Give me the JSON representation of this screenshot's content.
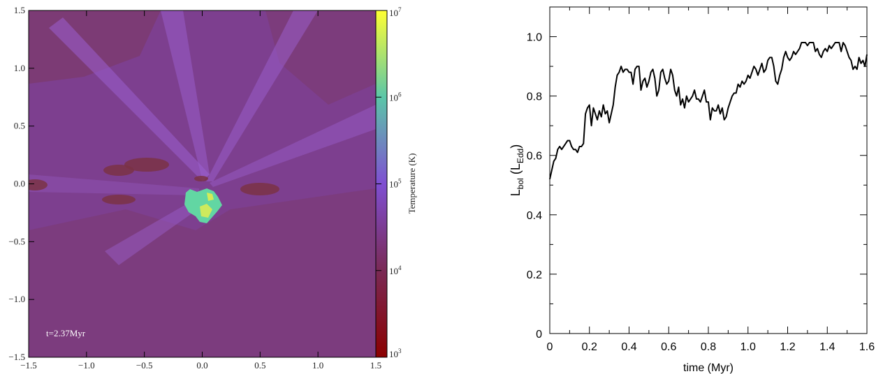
{
  "chart_data": [
    {
      "type": "heatmap",
      "annotation": "t=2.37Myr",
      "x_ticks": [
        "−1.5",
        "−1.0",
        "−0.5",
        "0.0",
        "0.5",
        "1.0",
        "1.5"
      ],
      "y_ticks": [
        "−1.5",
        "−1.0",
        "−0.5",
        "0.0",
        "0.5",
        "1.0",
        "1.5"
      ],
      "xlim": [
        -1.5,
        1.5
      ],
      "ylim": [
        -1.5,
        1.5
      ],
      "colorbar": {
        "label": "Temperature  (K)",
        "scale": "log",
        "range": [
          1000,
          10000000
        ],
        "tick_bases": [
          "10",
          "10",
          "10",
          "10",
          "10"
        ],
        "tick_exponents": [
          "3",
          "4",
          "5",
          "6",
          "7"
        ],
        "colors": [
          "#8b0000",
          "#7a2a55",
          "#7f4fd2",
          "#5bc6a8",
          "#ffff33"
        ]
      },
      "colors": {
        "background": "#7d3f8f",
        "dark_lobe": "#7a3345",
        "light_streak": "#9b5fcf",
        "hot_core": "#62d6a3"
      }
    },
    {
      "type": "line",
      "xlabel": "time (Myr)",
      "ylabel": {
        "main": "L",
        "sub1": "bol",
        "mid": " (L",
        "sub2": "Edd",
        "end": ")"
      },
      "xlim": [
        0,
        1.6
      ],
      "ylim": [
        0,
        1.1
      ],
      "x_ticks": [
        "0",
        "0.2",
        "0.4",
        "0.6",
        "0.8",
        "1.0",
        "1.2",
        "1.4",
        "1.6"
      ],
      "y_ticks": [
        "0",
        "0.2",
        "0.4",
        "0.6",
        "0.8",
        "1.0"
      ],
      "x": [
        0.0,
        0.01,
        0.02,
        0.03,
        0.04,
        0.05,
        0.06,
        0.07,
        0.08,
        0.09,
        0.1,
        0.11,
        0.12,
        0.13,
        0.14,
        0.15,
        0.16,
        0.17,
        0.18,
        0.19,
        0.2,
        0.21,
        0.22,
        0.23,
        0.24,
        0.25,
        0.26,
        0.27,
        0.28,
        0.29,
        0.3,
        0.31,
        0.32,
        0.33,
        0.34,
        0.35,
        0.36,
        0.37,
        0.38,
        0.39,
        0.4,
        0.41,
        0.42,
        0.43,
        0.44,
        0.45,
        0.46,
        0.47,
        0.48,
        0.49,
        0.5,
        0.51,
        0.52,
        0.53,
        0.54,
        0.55,
        0.56,
        0.57,
        0.58,
        0.59,
        0.6,
        0.61,
        0.62,
        0.63,
        0.64,
        0.65,
        0.66,
        0.67,
        0.68,
        0.69,
        0.7,
        0.71,
        0.72,
        0.73,
        0.74,
        0.75,
        0.76,
        0.77,
        0.78,
        0.79,
        0.8,
        0.81,
        0.82,
        0.83,
        0.84,
        0.85,
        0.86,
        0.87,
        0.88,
        0.89,
        0.9,
        0.91,
        0.92,
        0.93,
        0.94,
        0.95,
        0.96,
        0.97,
        0.98,
        0.99,
        1.0,
        1.01,
        1.02,
        1.03,
        1.04,
        1.05,
        1.06,
        1.07,
        1.08,
        1.09,
        1.1,
        1.11,
        1.12,
        1.13,
        1.14,
        1.15,
        1.16,
        1.17,
        1.18,
        1.19,
        1.2,
        1.21,
        1.22,
        1.23,
        1.24,
        1.25,
        1.26,
        1.27,
        1.28,
        1.29,
        1.3,
        1.31,
        1.32,
        1.33,
        1.34,
        1.35,
        1.36,
        1.37,
        1.38,
        1.39,
        1.4,
        1.41,
        1.42,
        1.43,
        1.44,
        1.45,
        1.46,
        1.47,
        1.48,
        1.49,
        1.5,
        1.51,
        1.52,
        1.53,
        1.54,
        1.55,
        1.56,
        1.57,
        1.58,
        1.59,
        1.6
      ],
      "y": [
        0.52,
        0.55,
        0.58,
        0.59,
        0.62,
        0.63,
        0.62,
        0.63,
        0.64,
        0.65,
        0.65,
        0.63,
        0.62,
        0.62,
        0.61,
        0.63,
        0.63,
        0.64,
        0.74,
        0.76,
        0.77,
        0.7,
        0.76,
        0.74,
        0.72,
        0.75,
        0.73,
        0.77,
        0.74,
        0.75,
        0.71,
        0.74,
        0.77,
        0.83,
        0.87,
        0.88,
        0.9,
        0.88,
        0.89,
        0.89,
        0.88,
        0.88,
        0.84,
        0.89,
        0.9,
        0.9,
        0.82,
        0.85,
        0.86,
        0.83,
        0.85,
        0.88,
        0.89,
        0.86,
        0.8,
        0.82,
        0.88,
        0.89,
        0.86,
        0.84,
        0.85,
        0.89,
        0.87,
        0.82,
        0.8,
        0.83,
        0.77,
        0.79,
        0.76,
        0.8,
        0.78,
        0.79,
        0.8,
        0.82,
        0.79,
        0.79,
        0.78,
        0.8,
        0.82,
        0.78,
        0.78,
        0.72,
        0.76,
        0.75,
        0.75,
        0.77,
        0.74,
        0.76,
        0.72,
        0.73,
        0.76,
        0.78,
        0.8,
        0.81,
        0.81,
        0.84,
        0.83,
        0.85,
        0.84,
        0.85,
        0.87,
        0.86,
        0.88,
        0.9,
        0.89,
        0.87,
        0.89,
        0.91,
        0.88,
        0.89,
        0.92,
        0.93,
        0.93,
        0.9,
        0.85,
        0.84,
        0.87,
        0.89,
        0.93,
        0.95,
        0.93,
        0.92,
        0.93,
        0.95,
        0.94,
        0.95,
        0.96,
        0.98,
        0.98,
        0.98,
        0.97,
        0.98,
        0.98,
        0.98,
        0.95,
        0.96,
        0.94,
        0.93,
        0.95,
        0.96,
        0.95,
        0.97,
        0.96,
        0.97,
        0.98,
        0.98,
        0.98,
        0.95,
        0.98,
        0.97,
        0.95,
        0.93,
        0.92,
        0.89,
        0.9,
        0.89,
        0.93,
        0.91,
        0.92,
        0.9,
        0.94
      ]
    }
  ]
}
